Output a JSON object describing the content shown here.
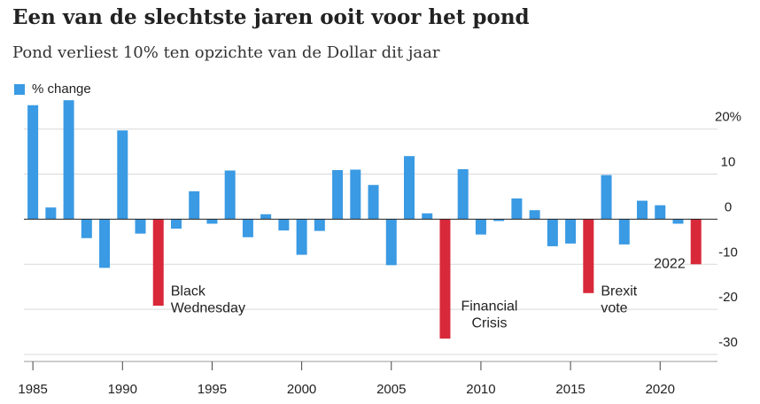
{
  "title": "Een van de slechtste jaren ooit voor het pond",
  "subtitle": "Pond verliest 10% ten opzichte van de Dollar dit jaar",
  "legend": {
    "label": "% change"
  },
  "colors": {
    "positive": "#3a9ae3",
    "highlight": "#d8293a",
    "grid": "#d9d9d9",
    "zero": "#222222"
  },
  "chart_data": {
    "type": "bar",
    "x": [
      1985,
      1986,
      1987,
      1988,
      1989,
      1990,
      1991,
      1992,
      1993,
      1994,
      1995,
      1996,
      1997,
      1998,
      1999,
      2000,
      2001,
      2002,
      2003,
      2004,
      2005,
      2006,
      2007,
      2008,
      2009,
      2010,
      2011,
      2012,
      2013,
      2014,
      2015,
      2016,
      2017,
      2018,
      2019,
      2020,
      2021,
      2022
    ],
    "series": [
      {
        "name": "% change",
        "values": [
          25.3,
          2.6,
          26.4,
          -4.2,
          -10.8,
          19.7,
          -3.2,
          -19.2,
          -2.1,
          6.2,
          -1.0,
          10.8,
          -4.0,
          1.1,
          -2.5,
          -7.9,
          -2.6,
          10.9,
          11.0,
          7.6,
          -10.2,
          14.0,
          1.3,
          -26.5,
          11.1,
          -3.4,
          -0.4,
          4.6,
          2.0,
          -6.0,
          -5.4,
          -16.4,
          9.8,
          -5.6,
          4.1,
          3.1,
          -1.0,
          -10.0
        ]
      }
    ],
    "highlight_years": [
      1992,
      2008,
      2016,
      2022
    ],
    "x_ticks": [
      "1985",
      "1990",
      "1995",
      "2000",
      "2005",
      "2010",
      "2015",
      "2020"
    ],
    "y_ticks": [
      {
        "value": 20,
        "label": "20%"
      },
      {
        "value": 10,
        "label": "10"
      },
      {
        "value": 0,
        "label": "0"
      },
      {
        "value": -10,
        "label": "-10"
      },
      {
        "value": -20,
        "label": "-20"
      },
      {
        "value": -30,
        "label": "-30"
      }
    ],
    "ylim": [
      -30,
      28
    ],
    "xlim": [
      1984.5,
      2023.2
    ],
    "axis_position": "right",
    "grid": true,
    "annotations": [
      {
        "year": 1992,
        "lines": [
          "Black",
          "Wednesday"
        ]
      },
      {
        "year": 2008,
        "lines": [
          "Financial",
          "Crisis"
        ]
      },
      {
        "year": 2016,
        "lines": [
          "Brexit",
          "vote"
        ]
      },
      {
        "year": 2022,
        "lines": [
          "2022"
        ]
      }
    ]
  }
}
